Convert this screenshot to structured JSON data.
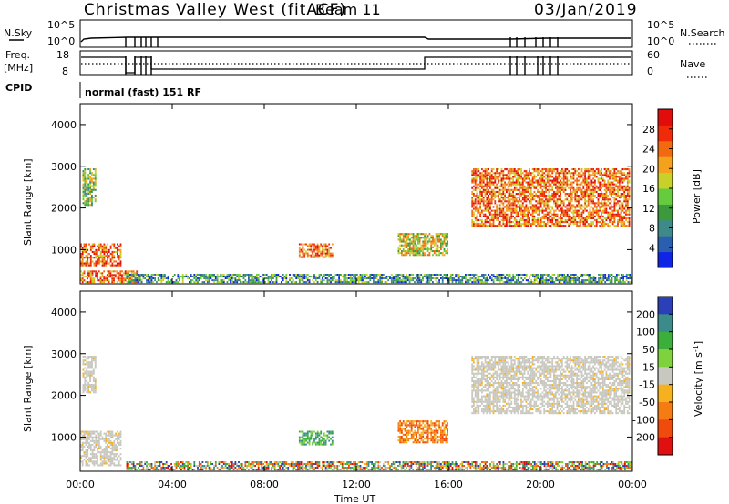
{
  "header": {
    "station": "Christmas Valley West (fitACF)",
    "beam": "Beam 11",
    "date": "03/Jan/2019"
  },
  "nsky_panel": {
    "label": "N.Sky",
    "left_ticks": [
      "10^5",
      "10^0"
    ],
    "right_label": "N.Search",
    "right_ticks": [
      "10^5",
      "10^0"
    ]
  },
  "freq_panel": {
    "label_line1": "Freq.",
    "label_line2": "[MHz]",
    "left_ticks": [
      "18",
      "8"
    ],
    "right_label": "Nave",
    "right_ticks": [
      "60",
      "0"
    ]
  },
  "cpid": {
    "label": "CPID",
    "text": "normal (fast) 151 RF"
  },
  "chart_data": [
    {
      "type": "heatmap",
      "name": "power",
      "ylabel": "Slant Range [km]",
      "xlabel": "",
      "x_ticks": [
        "00:00",
        "04:00",
        "08:00",
        "12:00",
        "16:00",
        "20:00",
        "00:00"
      ],
      "xlim_hours": [
        0,
        24
      ],
      "y_ticks": [
        "1000",
        "2000",
        "3000",
        "4000"
      ],
      "y_tick_values": [
        1000,
        2000,
        3000,
        4000
      ],
      "ylim": [
        180,
        4500
      ],
      "colorbar": {
        "label": "Power [dB]",
        "ticks": [
          "4",
          "8",
          "12",
          "16",
          "20",
          "24",
          "28"
        ],
        "tick_values": [
          4,
          8,
          12,
          16,
          20,
          24,
          28
        ],
        "range": [
          0,
          32
        ],
        "colors": [
          "#0f25e6",
          "#2a5fb0",
          "#3e8a8a",
          "#3c9a3c",
          "#66cc3d",
          "#c8d12a",
          "#f4a21e",
          "#f26a10",
          "#ef2b0a",
          "#e10d0d"
        ]
      },
      "regions": [
        {
          "t": [
            0.1,
            0.7
          ],
          "r": [
            2050,
            2950
          ],
          "level": "low-mid"
        },
        {
          "t": [
            0.0,
            1.8
          ],
          "r": [
            600,
            1150
          ],
          "level": "high"
        },
        {
          "t": [
            0.0,
            2.5
          ],
          "r": [
            200,
            500
          ],
          "level": "high"
        },
        {
          "t": [
            2.0,
            24.0
          ],
          "r": [
            200,
            420
          ],
          "level": "low"
        },
        {
          "t": [
            9.5,
            11.0
          ],
          "r": [
            800,
            1150
          ],
          "level": "high"
        },
        {
          "t": [
            13.8,
            16.0
          ],
          "r": [
            850,
            1400
          ],
          "level": "mid"
        },
        {
          "t": [
            17.0,
            23.9
          ],
          "r": [
            1550,
            2950
          ],
          "level": "high"
        }
      ]
    },
    {
      "type": "heatmap",
      "name": "velocity",
      "ylabel": "Slant Range [km]",
      "xlabel": "Time UT",
      "x_ticks": [
        "00:00",
        "04:00",
        "08:00",
        "12:00",
        "16:00",
        "20:00",
        "00:00"
      ],
      "xlim_hours": [
        0,
        24
      ],
      "y_ticks": [
        "1000",
        "2000",
        "3000",
        "4000"
      ],
      "y_tick_values": [
        1000,
        2000,
        3000,
        4000
      ],
      "ylim": [
        180,
        4500
      ],
      "colorbar": {
        "label": "Velocity [m s^-1]",
        "ticks": [
          "200",
          "100",
          "50",
          "15",
          "-15",
          "-50",
          "-100",
          "-200"
        ],
        "tick_values": [
          200,
          100,
          50,
          15,
          -15,
          -50,
          -100,
          -200
        ],
        "range": [
          -300,
          300
        ],
        "colors": [
          "#2a3fb8",
          "#3b8b8b",
          "#3cae3c",
          "#7fd23e",
          "#c8c8c0",
          "#f5b21e",
          "#f57c12",
          "#f04a0c",
          "#e01010"
        ]
      },
      "regions": [
        {
          "t": [
            0.1,
            0.7
          ],
          "r": [
            2050,
            2950
          ],
          "level": "ground"
        },
        {
          "t": [
            0.0,
            1.8
          ],
          "r": [
            300,
            1150
          ],
          "level": "ground"
        },
        {
          "t": [
            2.0,
            24.0
          ],
          "r": [
            200,
            420
          ],
          "level": "mixed"
        },
        {
          "t": [
            9.5,
            11.0
          ],
          "r": [
            800,
            1150
          ],
          "level": "positive"
        },
        {
          "t": [
            13.8,
            16.0
          ],
          "r": [
            850,
            1400
          ],
          "level": "negative"
        },
        {
          "t": [
            17.0,
            23.9
          ],
          "r": [
            1550,
            2950
          ],
          "level": "ground"
        }
      ]
    }
  ]
}
